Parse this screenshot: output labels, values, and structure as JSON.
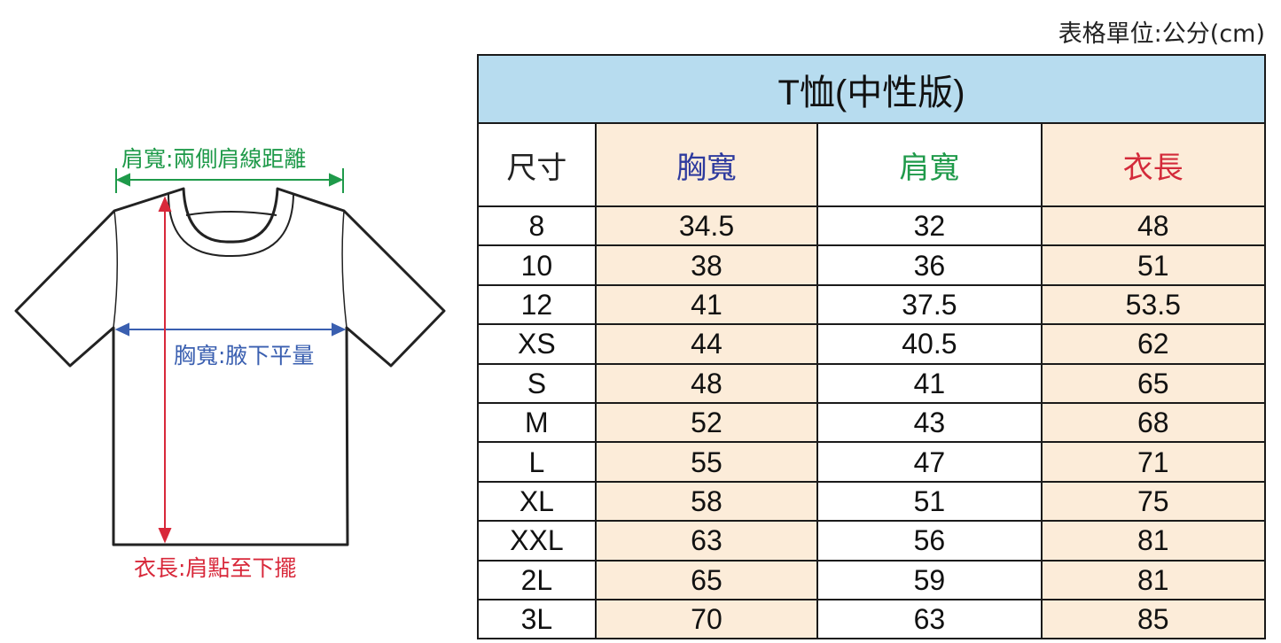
{
  "unit_note": "表格單位:公分(cm)",
  "diagram": {
    "shoulder_label": "肩寬:兩側肩線距離",
    "chest_label": "胸寬:腋下平量",
    "length_label": "衣長:肩點至下擺"
  },
  "colors": {
    "shoulder": "#1f9a4a",
    "chest": "#3a5fb0",
    "length": "#d8283a",
    "title_bg": "#b7dcef",
    "highlight": "#fcecd9"
  },
  "table": {
    "title": "T恤(中性版)",
    "headers": [
      "尺寸",
      "胸寬",
      "肩寬",
      "衣長"
    ],
    "rows": [
      [
        "8",
        "34.5",
        "32",
        "48"
      ],
      [
        "10",
        "38",
        "36",
        "51"
      ],
      [
        "12",
        "41",
        "37.5",
        "53.5"
      ],
      [
        "XS",
        "44",
        "40.5",
        "62"
      ],
      [
        "S",
        "48",
        "41",
        "65"
      ],
      [
        "M",
        "52",
        "43",
        "68"
      ],
      [
        "L",
        "55",
        "47",
        "71"
      ],
      [
        "XL",
        "58",
        "51",
        "75"
      ],
      [
        "XXL",
        "63",
        "56",
        "81"
      ],
      [
        "2L",
        "65",
        "59",
        "81"
      ],
      [
        "3L",
        "70",
        "63",
        "85"
      ]
    ]
  }
}
